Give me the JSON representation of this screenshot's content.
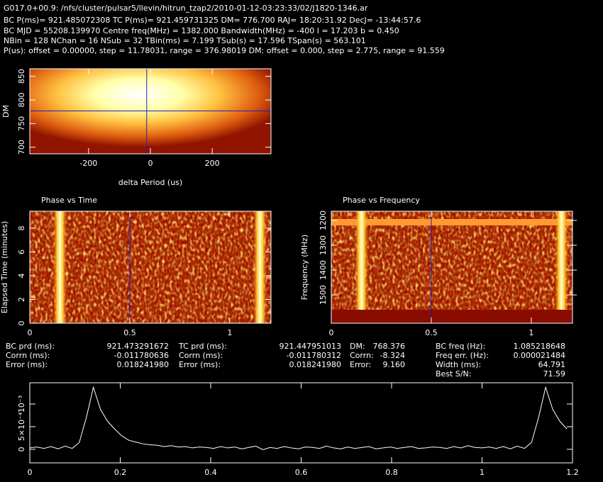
{
  "header": [
    "G017.0+00.9: /nfs/cluster/pulsar5/llevin/hitrun_tzap2/2010-01-12-03:23:33/02/J1820-1346.ar",
    "BC P(ms)= 921.485072308 TC P(ms)= 921.459731325 DM= 776.700 RAJ= 18:20:31.92 DecJ= -13:44:57.6",
    "BC MJD = 55208.139970 Centre freq(MHz) = 1382.000 Bandwidth(MHz) = -400 l = 17.203 b = 0.450",
    "NBin = 128 NChan = 16 NSub = 32 TBin(ms) = 7.199 TSub(s) = 17.596 TSpan(s) = 563.101",
    "P(us): offset = 0.00000, step = 11.78031, range = 376.98019 DM: offset = 0.000, step = 2.775, range = 91.559"
  ],
  "chart_data": [
    {
      "type": "heatmap",
      "xlabel": "delta Period (us)",
      "ylabel": "DM",
      "xlim": [
        -390,
        390
      ],
      "xticks": [
        -200,
        0,
        200
      ],
      "ylim": [
        686,
        866
      ],
      "yticks": [
        700,
        750,
        800,
        850
      ],
      "crosshair": {
        "x": -12,
        "y": 776.7
      },
      "crosshair_color": "#2020c0"
    },
    {
      "type": "heatmap",
      "title": "Phase vs Time",
      "ylabel": "Elapsed Time (minutes)",
      "xlim": [
        0,
        1.206
      ],
      "xticks": [
        0,
        0.5,
        1
      ],
      "ylim": [
        0,
        9.43
      ],
      "yticks": [
        0,
        2,
        4,
        6,
        8
      ],
      "crosshair": {
        "x": 0.5
      },
      "crosshair_color": "#2020c0"
    },
    {
      "type": "heatmap",
      "title": "Phase vs Frequency",
      "ylabel": "Frequency (MHz)",
      "xlim": [
        0,
        1.206
      ],
      "xticks": [
        0,
        0.5,
        1
      ],
      "ylim": [
        1614,
        1163
      ],
      "yticks": [
        1200,
        1300,
        1400,
        1500
      ],
      "crosshair": {
        "x": 0.5
      },
      "crosshair_color": "#2020c0"
    },
    {
      "type": "line",
      "color": "#ffffff",
      "xlim": [
        0,
        1.2
      ],
      "xticks": [
        0,
        0.2,
        0.4,
        0.6,
        0.8,
        1,
        1.2
      ],
      "ylim": [
        -0.0003,
        0.00147
      ],
      "yticks": [
        0,
        {
          "value": 0.0005,
          "label": "5×10⁻⁴"
        },
        {
          "value": 0.001,
          "label": "10⁻³"
        }
      ],
      "x": [
        0,
        0.0156,
        0.0313,
        0.0469,
        0.0625,
        0.0781,
        0.0938,
        0.1094,
        0.125,
        0.1406,
        0.1563,
        0.1719,
        0.1875,
        0.2031,
        0.2188,
        0.2344,
        0.25,
        0.2656,
        0.2813,
        0.2969,
        0.3125,
        0.3281,
        0.3438,
        0.3594,
        0.375,
        0.3906,
        0.4063,
        0.4219,
        0.4375,
        0.4531,
        0.4688,
        0.4844,
        0.5,
        0.5156,
        0.5313,
        0.5469,
        0.5625,
        0.5781,
        0.5938,
        0.6094,
        0.625,
        0.6406,
        0.6563,
        0.6719,
        0.6875,
        0.7031,
        0.7188,
        0.7344,
        0.75,
        0.7656,
        0.7813,
        0.7969,
        0.8125,
        0.8281,
        0.8438,
        0.8594,
        0.875,
        0.8906,
        0.9063,
        0.9219,
        0.9375,
        0.9531,
        0.9688,
        0.9844,
        1,
        1.0156,
        1.0313,
        1.0469,
        1.0625,
        1.0781,
        1.0938,
        1.1094,
        1.125,
        1.1406,
        1.1563,
        1.1719,
        1.1875
      ],
      "values": [
        3e-05,
        5e-05,
        2e-05,
        6e-05,
        1e-05,
        7e-05,
        2e-05,
        0.00015,
        0.0007,
        0.00137,
        0.00088,
        0.00062,
        0.00045,
        0.0003,
        0.0002,
        0.00016,
        0.00012,
        0.0001,
        9e-05,
        6e-05,
        8e-05,
        5e-05,
        6e-05,
        3e-05,
        5e-05,
        4e-05,
        2e-05,
        6e-05,
        3e-05,
        5e-05,
        1e-05,
        4e-05,
        7e-05,
        -1e-05,
        4e-05,
        2e-05,
        6e-05,
        3e-05,
        1e-05,
        5e-05,
        4e-05,
        2e-05,
        7e-05,
        3e-05,
        1e-05,
        5e-05,
        2e-05,
        4e-05,
        6e-05,
        1e-05,
        3e-05,
        5e-05,
        2e-05,
        4e-05,
        6e-05,
        2e-05,
        3e-05,
        5e-05,
        4e-05,
        2e-05,
        6e-05,
        3e-05,
        8e-05,
        4e-05,
        3e-05,
        5e-05,
        2e-05,
        6e-05,
        1e-05,
        7e-05,
        2e-05,
        0.00015,
        0.0007,
        0.00137,
        0.00088,
        0.00062,
        0.00045
      ]
    }
  ],
  "stats": [
    {
      "labels": [
        "BC prd (ms):",
        "Corrn (ms):",
        "Error (ms):"
      ],
      "values": [
        "921.473291672",
        "-0.011780636",
        "0.018241980"
      ]
    },
    {
      "labels": [
        "TC prd (ms):",
        "Corrn (ms):",
        "Error (ms):"
      ],
      "values": [
        "921.447951013",
        "-0.011780312",
        "0.018241980"
      ]
    },
    {
      "labels": [
        "DM:",
        "Corrn:",
        "Error:"
      ],
      "values": [
        "768.376",
        "-8.324",
        "9.160"
      ]
    },
    {
      "labels": [
        "BC freq (Hz):",
        "Freq err. (Hz):",
        "Width (ms):",
        "Best S/N:"
      ],
      "values": [
        "1.085218648",
        "0.000021484",
        "64.791",
        "71.59"
      ]
    }
  ]
}
